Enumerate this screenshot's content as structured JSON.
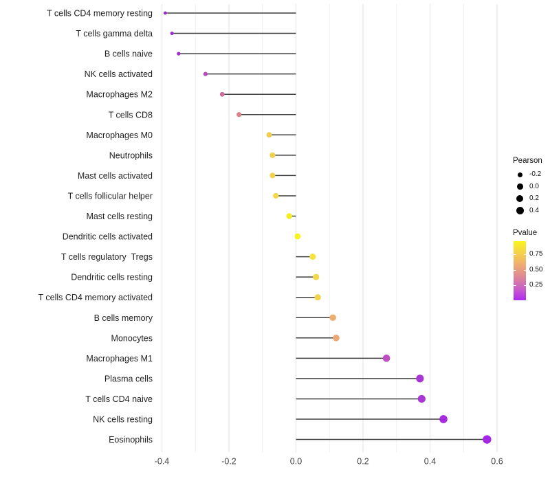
{
  "chart_data": {
    "type": "scatter",
    "subtype": "horizontal-lollipop",
    "title": "",
    "xlabel": "",
    "ylabel": "",
    "xlim": [
      -0.45,
      0.64
    ],
    "baseline_x": 0.0,
    "x_ticks": [
      -0.4,
      -0.2,
      0.0,
      0.2,
      0.4,
      0.6
    ],
    "x_tick_labels": [
      "-0.4",
      "-0.2",
      "0.0",
      "0.2",
      "0.4",
      "0.6"
    ],
    "x_minor_gridlines": [
      -0.3,
      -0.1,
      0.1,
      0.3,
      0.5
    ],
    "grid": "vertical gridlines only, light gray on white panel",
    "legend_position": "right",
    "encoding": {
      "x": "Pearson correlation",
      "size": "Pearson",
      "color": "Pvalue"
    },
    "points": [
      {
        "label": "T cells CD4 memory resting",
        "pearson": -0.39,
        "color": "#9729CE"
      },
      {
        "label": "T cells gamma delta",
        "pearson": -0.37,
        "color": "#9D2CD0"
      },
      {
        "label": "B cells naive",
        "pearson": -0.35,
        "color": "#A02ED1"
      },
      {
        "label": "NK cells activated",
        "pearson": -0.27,
        "color": "#B54CC0"
      },
      {
        "label": "Macrophages M2",
        "pearson": -0.22,
        "color": "#CC6B9C"
      },
      {
        "label": "T cells CD8",
        "pearson": -0.17,
        "color": "#DB8289"
      },
      {
        "label": "Macrophages M0",
        "pearson": -0.08,
        "color": "#F0CC55"
      },
      {
        "label": "Neutrophils",
        "pearson": -0.07,
        "color": "#F1CF52"
      },
      {
        "label": "Mast cells activated",
        "pearson": -0.07,
        "color": "#F2D14F"
      },
      {
        "label": "T cells follicular helper",
        "pearson": -0.06,
        "color": "#F3D94A"
      },
      {
        "label": "Mast cells resting",
        "pearson": -0.02,
        "color": "#F4EC1E"
      },
      {
        "label": "Dendritic cells activated",
        "pearson": 0.005,
        "color": "#F8F318"
      },
      {
        "label": "T cells regulatory  Tregs",
        "pearson": 0.05,
        "color": "#F5E43D"
      },
      {
        "label": "Dendritic cells resting",
        "pearson": 0.06,
        "color": "#F2D74B"
      },
      {
        "label": "T cells CD4 memory activated",
        "pearson": 0.065,
        "color": "#F1D34E"
      },
      {
        "label": "B cells memory",
        "pearson": 0.11,
        "color": "#EDAE6E"
      },
      {
        "label": "Monocytes",
        "pearson": 0.12,
        "color": "#EBA875"
      },
      {
        "label": "Macrophages M1",
        "pearson": 0.27,
        "color": "#BC4DC3"
      },
      {
        "label": "Plasma cells",
        "pearson": 0.37,
        "color": "#A936D5"
      },
      {
        "label": "T cells CD4 naive",
        "pearson": 0.375,
        "color": "#A936D5"
      },
      {
        "label": "NK cells resting",
        "pearson": 0.44,
        "color": "#A62BE0"
      },
      {
        "label": "Eosinophils",
        "pearson": 0.57,
        "color": "#A527E7"
      }
    ]
  },
  "legend": {
    "pearson": {
      "title": "Pearson",
      "entries": [
        {
          "label": "-0.2",
          "value": -0.2
        },
        {
          "label": "0.0",
          "value": 0.0
        },
        {
          "label": "0.2",
          "value": 0.2
        },
        {
          "label": "0.4",
          "value": 0.4
        }
      ]
    },
    "pvalue": {
      "title": "Pvalue",
      "tick_labels": [
        "0.75",
        "0.50",
        "0.25"
      ],
      "gradient_top_to_bottom": [
        "#F9F41F",
        "#F5D24A",
        "#EFAC72",
        "#DE8895",
        "#C960C6",
        "#B02BF0"
      ]
    }
  },
  "style_colors": {
    "panel_background": "#FFFFFF",
    "gridline_major": "#E7E7E7",
    "gridline_minor": "#F1F1F1",
    "stick": "#3F3F3F",
    "axis_text": "#454545",
    "category_text": "#1F1F1F"
  }
}
